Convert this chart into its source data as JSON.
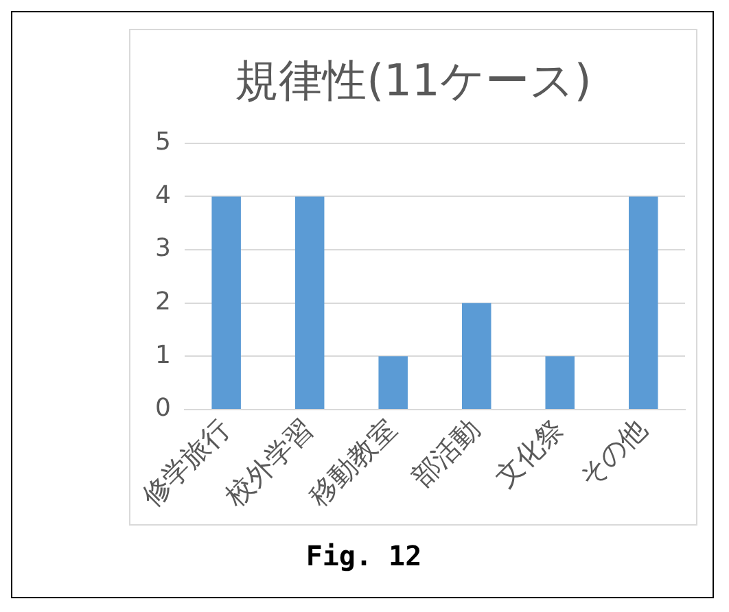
{
  "chart_data": {
    "type": "bar",
    "title": "規律性(11ケース)",
    "categories": [
      "修学旅行",
      "校外学習",
      "移動教室",
      "部活動",
      "文化祭",
      "その他"
    ],
    "values": [
      4,
      4,
      1,
      2,
      1,
      4
    ],
    "color": "#5b9bd5",
    "ylim": [
      0,
      5
    ],
    "yticks": [
      0,
      1,
      2,
      3,
      4,
      5
    ],
    "grid": "y",
    "annotations": [
      "Fig. 12"
    ]
  }
}
